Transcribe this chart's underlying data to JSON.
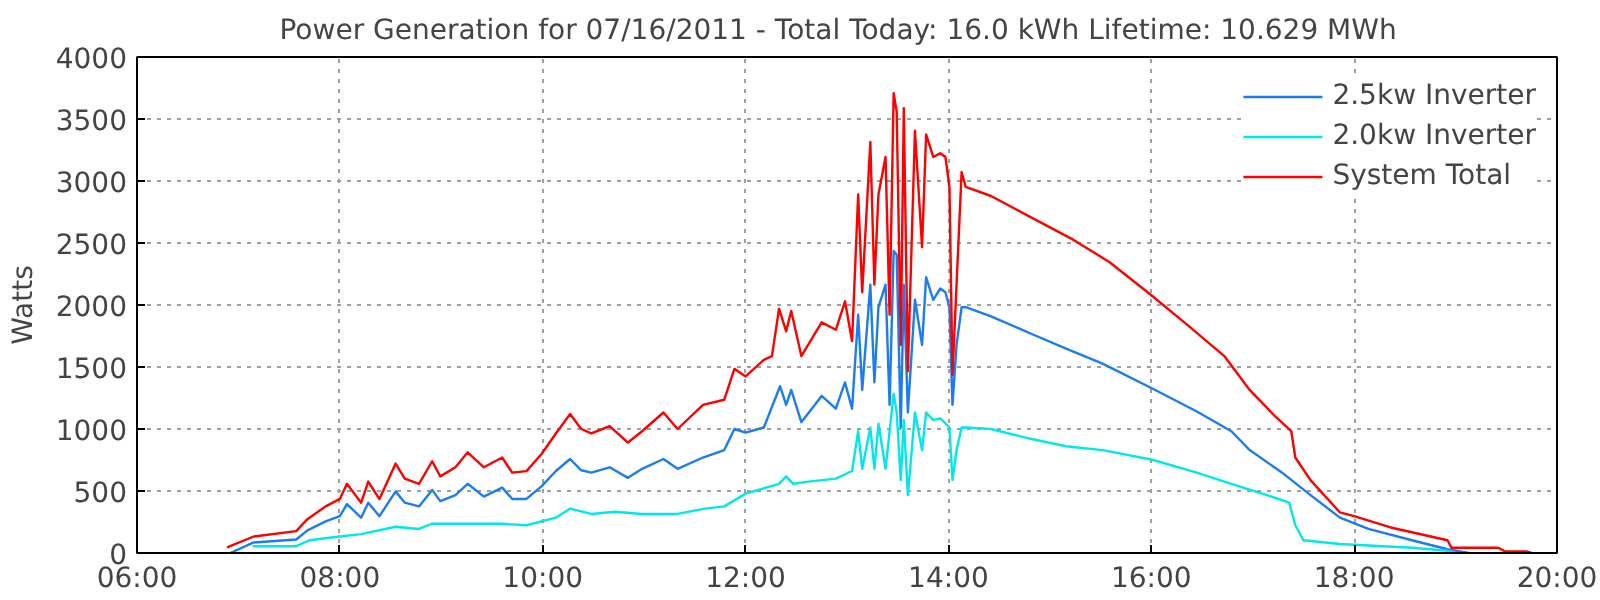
{
  "chart_data": {
    "type": "line",
    "title": "Power Generation for 07/16/2011 - Total Today: 16.0 kWh   Lifetime: 10.629 MWh",
    "ylabel": "Watts",
    "xlim": [
      6,
      20
    ],
    "xticks": [
      {
        "value": 6,
        "label": "06:00"
      },
      {
        "value": 8,
        "label": "08:00"
      },
      {
        "value": 10,
        "label": "10:00"
      },
      {
        "value": 12,
        "label": "12:00"
      },
      {
        "value": 14,
        "label": "14:00"
      },
      {
        "value": 16,
        "label": "16:00"
      },
      {
        "value": 18,
        "label": "18:00"
      },
      {
        "value": 20,
        "label": "20:00"
      }
    ],
    "ylim": [
      0,
      4000
    ],
    "yticks": [
      0,
      500,
      1000,
      1500,
      2000,
      2500,
      3000,
      3500,
      4000
    ],
    "grid": true,
    "legend": "top right",
    "line_style": "solid",
    "marker": "none",
    "series": [
      {
        "name": "2.5kw Inverter",
        "color": "#1c7cf0",
        "x": [
          6.92,
          7.15,
          7.57,
          7.68,
          7.86,
          8.0,
          8.07,
          8.21,
          8.28,
          8.39,
          8.55,
          8.64,
          8.78,
          8.91,
          8.99,
          9.14,
          9.26,
          9.42,
          9.6,
          9.7,
          9.84,
          9.99,
          10.13,
          10.27,
          10.38,
          10.48,
          10.66,
          10.84,
          10.98,
          11.19,
          11.33,
          11.58,
          11.79,
          11.89,
          12.0,
          12.18,
          12.34,
          12.4,
          12.45,
          12.55,
          12.75,
          12.89,
          12.98,
          13.05,
          13.11,
          13.15,
          13.23,
          13.27,
          13.31,
          13.38,
          13.42,
          13.46,
          13.49,
          13.53,
          13.56,
          13.6,
          13.67,
          13.74,
          13.78,
          13.85,
          13.92,
          13.97,
          14.01,
          14.04,
          14.08,
          14.13,
          14.17,
          14.42,
          14.81,
          15.16,
          15.52,
          16.01,
          16.44,
          16.79,
          16.97,
          17.29,
          17.57,
          17.86,
          18.14,
          18.57,
          18.92,
          19.13
        ],
        "values": [
          0,
          85,
          109,
          182,
          255,
          297,
          394,
          285,
          406,
          297,
          497,
          406,
          376,
          509,
          418,
          467,
          558,
          455,
          527,
          436,
          436,
          539,
          661,
          758,
          667,
          648,
          691,
          606,
          679,
          758,
          679,
          770,
          830,
          1000,
          970,
          1012,
          1345,
          1194,
          1315,
          1055,
          1267,
          1164,
          1376,
          1164,
          1921,
          1315,
          2164,
          1376,
          1982,
          2164,
          1194,
          2436,
          2406,
          1012,
          2164,
          1133,
          2042,
          1679,
          2224,
          2042,
          2133,
          2103,
          1982,
          1194,
          1679,
          1982,
          1982,
          1909,
          1770,
          1648,
          1527,
          1327,
          1145,
          982,
          830,
          648,
          467,
          285,
          194,
          103,
          30,
          0
        ]
      },
      {
        "name": "2.0kw Inverter",
        "color": "#00e8e8",
        "x": [
          7.14,
          7.57,
          7.7,
          8.0,
          8.21,
          8.55,
          8.78,
          8.91,
          9.26,
          9.6,
          9.84,
          10.13,
          10.27,
          10.48,
          10.71,
          10.98,
          11.33,
          11.6,
          11.79,
          12.0,
          12.33,
          12.4,
          12.47,
          12.62,
          12.89,
          13.05,
          13.11,
          13.15,
          13.23,
          13.27,
          13.31,
          13.38,
          13.46,
          13.49,
          13.53,
          13.56,
          13.6,
          13.67,
          13.74,
          13.78,
          13.85,
          13.92,
          14.01,
          14.04,
          14.08,
          14.13,
          14.17,
          14.42,
          14.81,
          15.16,
          15.52,
          16.01,
          16.44,
          16.79,
          17.14,
          17.36,
          17.42,
          17.5,
          17.86,
          18.57,
          18.92,
          19.0
        ],
        "values": [
          55,
          55,
          103,
          133,
          152,
          212,
          194,
          236,
          236,
          236,
          224,
          285,
          358,
          315,
          333,
          315,
          315,
          358,
          376,
          479,
          558,
          618,
          558,
          576,
          600,
          661,
          982,
          679,
          1012,
          679,
          1042,
          679,
          1285,
          1133,
          588,
          1073,
          467,
          1133,
          830,
          1133,
          1073,
          1085,
          1012,
          588,
          830,
          1012,
          1012,
          1000,
          921,
          861,
          830,
          752,
          650,
          558,
          467,
          406,
          224,
          103,
          73,
          42,
          18,
          0
        ]
      },
      {
        "name": "System Total",
        "color": "#ff0000",
        "x": [
          6.89,
          6.9,
          7.15,
          7.57,
          7.68,
          7.86,
          8.0,
          8.07,
          8.21,
          8.28,
          8.39,
          8.55,
          8.64,
          8.78,
          8.91,
          8.99,
          9.14,
          9.26,
          9.42,
          9.6,
          9.7,
          9.84,
          9.99,
          10.13,
          10.27,
          10.38,
          10.48,
          10.66,
          10.84,
          10.98,
          11.19,
          11.33,
          11.58,
          11.79,
          11.89,
          12.0,
          12.18,
          12.26,
          12.33,
          12.4,
          12.45,
          12.55,
          12.75,
          12.89,
          12.98,
          13.05,
          13.11,
          13.15,
          13.23,
          13.27,
          13.31,
          13.38,
          13.42,
          13.46,
          13.49,
          13.53,
          13.56,
          13.6,
          13.67,
          13.74,
          13.78,
          13.85,
          13.92,
          13.97,
          14.01,
          14.04,
          14.08,
          14.13,
          14.17,
          14.42,
          14.67,
          14.95,
          15.23,
          15.59,
          16.01,
          16.37,
          16.72,
          16.97,
          17.22,
          17.38,
          17.42,
          17.57,
          17.86,
          18.0,
          18.36,
          18.92,
          18.96,
          19.42,
          19.49,
          19.7,
          19.75
        ],
        "values": [
          42,
          50,
          133,
          176,
          273,
          376,
          436,
          558,
          406,
          576,
          435,
          721,
          600,
          558,
          740,
          618,
          691,
          812,
          691,
          770,
          648,
          660,
          800,
          964,
          1121,
          1000,
          964,
          1024,
          891,
          982,
          1133,
          1000,
          1194,
          1236,
          1485,
          1424,
          1558,
          1588,
          1970,
          1788,
          1952,
          1588,
          1860,
          1800,
          2030,
          1709,
          2891,
          2103,
          3315,
          2164,
          2891,
          3194,
          1921,
          3709,
          3558,
          1679,
          3588,
          1467,
          3406,
          2467,
          3376,
          3194,
          3224,
          3194,
          2952,
          1436,
          2164,
          3073,
          2952,
          2879,
          2770,
          2648,
          2527,
          2345,
          2073,
          1830,
          1588,
          1315,
          1103,
          982,
          770,
          588,
          327,
          297,
          206,
          103,
          42,
          42,
          12,
          12,
          0
        ]
      }
    ]
  }
}
